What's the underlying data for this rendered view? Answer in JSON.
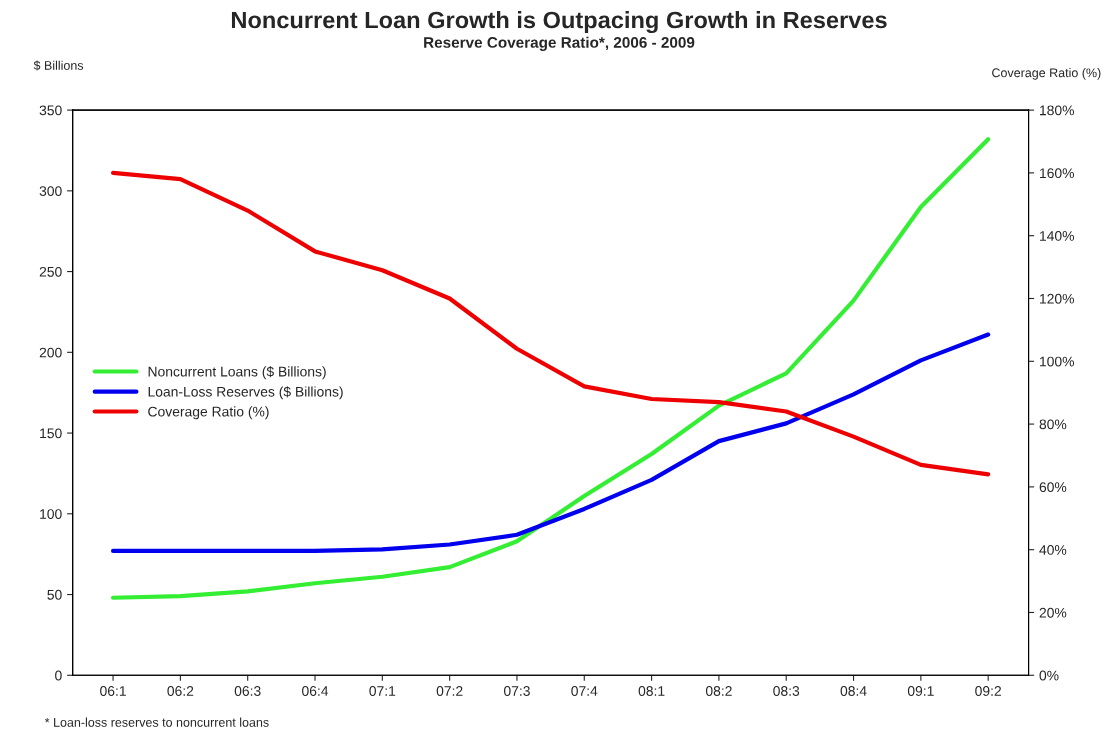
{
  "chart_data": {
    "type": "line",
    "title": "Noncurrent Loan Growth is Outpacing Growth in Reserves",
    "subtitle": "Reserve Coverage Ratio*, 2006 - 2009",
    "ylabel": "$ Billions",
    "y2label": "Coverage Ratio (%)",
    "categories": [
      "06:1",
      "06:2",
      "06:3",
      "06:4",
      "07:1",
      "07:2",
      "07:3",
      "07:4",
      "08:1",
      "08:2",
      "08:3",
      "08:4",
      "09:1",
      "09:2"
    ],
    "series": [
      {
        "name": "Noncurrent Loans ($ Billions)",
        "color": "#33ee33",
        "values": [
          48,
          49,
          52,
          57,
          61,
          67,
          83,
          111,
          137,
          167,
          187,
          232,
          290,
          332
        ]
      },
      {
        "name": "Loan-Loss Reserves ($ Billions)",
        "color": "#0000ee",
        "values": [
          77,
          77,
          77,
          77,
          78,
          81,
          87,
          103,
          121,
          145,
          156,
          174,
          195,
          211
        ]
      },
      {
        "name": "Coverage Ratio (%)",
        "color": "#ee0000",
        "axis": "y2",
        "values": [
          160,
          158,
          148,
          135,
          129,
          120,
          104,
          92,
          88,
          87,
          84,
          76,
          67,
          64
        ]
      }
    ],
    "ylim": [
      0,
      350
    ],
    "yticks": [
      0,
      50,
      100,
      150,
      200,
      250,
      300,
      350
    ],
    "y2lim": [
      0,
      180
    ],
    "y2ticks": [
      {
        "value": 0,
        "label": "0%"
      },
      {
        "value": 20,
        "label": "20%"
      },
      {
        "value": 40,
        "label": "40%"
      },
      {
        "value": 60,
        "label": "60%"
      },
      {
        "value": 80,
        "label": "80%"
      },
      {
        "value": 100,
        "label": "100%"
      },
      {
        "value": 120,
        "label": "120%"
      },
      {
        "value": 140,
        "label": "140%"
      },
      {
        "value": 160,
        "label": "160%"
      },
      {
        "value": 180,
        "label": "180%"
      }
    ],
    "legend": "center left",
    "grid": false,
    "marker": "none",
    "line_style": "solid",
    "annotations": [
      "* Loan-loss reserves to noncurrent loans"
    ]
  }
}
